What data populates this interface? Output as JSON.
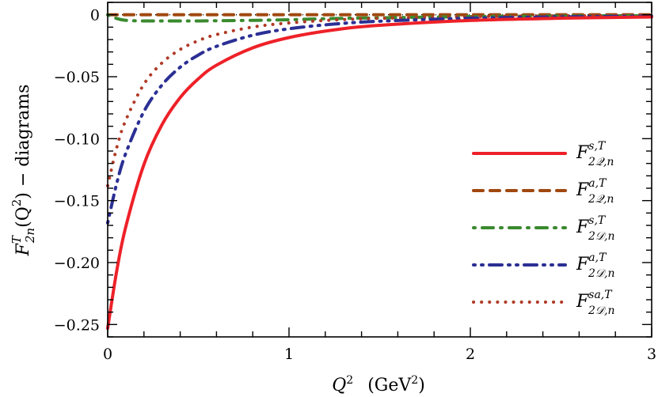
{
  "chart_data": {
    "type": "line",
    "xlabel": {
      "var": "Q",
      "sup": "2",
      "unit": "(GeV",
      "unit_sup": "2",
      "unit_close": ")"
    },
    "ylabel": {
      "base": "F",
      "sup": "T",
      "sub": "2n",
      "rest": "(Q",
      "rest_sup": "2",
      "tail": ") − diagrams"
    },
    "xlim": [
      0,
      3
    ],
    "ylim": [
      -0.26,
      0.01
    ],
    "x_ticks": [
      0,
      1,
      2,
      3
    ],
    "x_tick_labels": [
      "0",
      "1",
      "2",
      "3"
    ],
    "y_ticks": [
      0,
      -0.05,
      -0.1,
      -0.15,
      -0.2,
      -0.25
    ],
    "y_tick_labels": [
      "0",
      "−0.05",
      "−0.10",
      "−0.15",
      "−0.20",
      "−0.25"
    ],
    "grid": false,
    "legend_position": "right",
    "zero_reference_line": true,
    "x": [
      0,
      0.05,
      0.1,
      0.2,
      0.3,
      0.4,
      0.5,
      0.6,
      0.8,
      1.0,
      1.25,
      1.5,
      2.0,
      2.5,
      3.0
    ],
    "series": [
      {
        "name": {
          "base": "F",
          "sup": "s,T",
          "sub": "2𝒬,n"
        },
        "color": "#ee2128",
        "style": "solid",
        "values": [
          -0.253,
          -0.2066,
          -0.171,
          -0.1208,
          -0.0886,
          -0.0668,
          -0.0517,
          -0.0407,
          -0.0267,
          -0.0184,
          -0.0122,
          -0.0085,
          -0.0046,
          -0.0028,
          -0.0018
        ]
      },
      {
        "name": {
          "base": "F",
          "sup": "a,T",
          "sub": "2𝒬,n"
        },
        "color": "#a0480f",
        "style": "dashed",
        "values": [
          0,
          0,
          0,
          0,
          0,
          0,
          0,
          0,
          0,
          0,
          0,
          0,
          0,
          0,
          0
        ]
      },
      {
        "name": {
          "base": "F",
          "sup": "s,T",
          "sub": "2𝒟,n"
        },
        "color": "#3a8a2e",
        "style": "dashdot",
        "values": [
          0,
          -0.003,
          -0.0045,
          -0.005,
          -0.005,
          -0.005,
          -0.005,
          -0.0048,
          -0.0045,
          -0.004,
          -0.003,
          -0.0025,
          -0.0015,
          -0.001,
          -0.0007
        ]
      },
      {
        "name": {
          "base": "F",
          "sup": "a,T",
          "sub": "2𝒟,n"
        },
        "color": "#2b2f94",
        "style": "dashdotdot",
        "values": [
          -0.168,
          -0.136,
          -0.1117,
          -0.078,
          -0.0566,
          -0.0423,
          -0.0325,
          -0.0255,
          -0.0165,
          -0.0113,
          -0.0075,
          -0.0052,
          -0.0028,
          -0.0017,
          -0.0011
        ]
      },
      {
        "name": {
          "base": "F",
          "sup": "sa,T",
          "sub": "2𝒟,n"
        },
        "color": "#b03a26",
        "style": "dotted",
        "values": [
          -0.138,
          -0.1072,
          -0.085,
          -0.056,
          -0.0388,
          -0.028,
          -0.0209,
          -0.016,
          -0.0099,
          -0.0066,
          -0.0042,
          -0.0029,
          -0.0015,
          -0.0009,
          -0.0006
        ]
      }
    ]
  }
}
